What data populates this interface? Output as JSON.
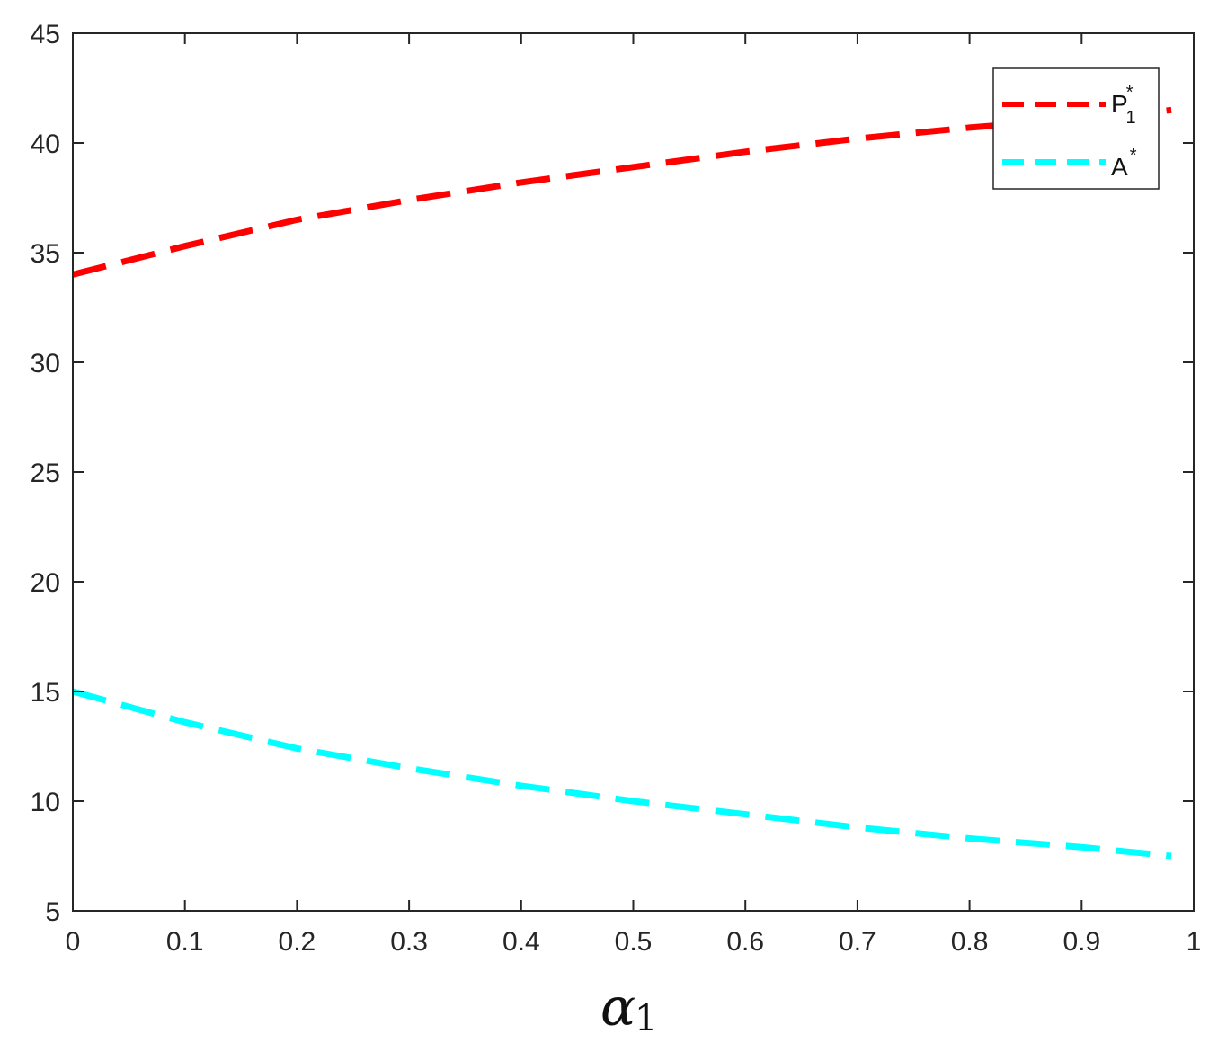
{
  "chart_data": {
    "type": "line",
    "title": "",
    "xlabel": {
      "symbol": "α",
      "subscript": "1"
    },
    "ylabel": "",
    "xlim": [
      0,
      1
    ],
    "ylim": [
      5,
      45
    ],
    "xticks": [
      "0",
      "0.1",
      "0.2",
      "0.3",
      "0.4",
      "0.5",
      "0.6",
      "0.7",
      "0.8",
      "0.9",
      "1"
    ],
    "yticks": [
      "5",
      "10",
      "15",
      "20",
      "25",
      "30",
      "35",
      "40",
      "45"
    ],
    "grid": false,
    "legend_position": "top-right",
    "series": [
      {
        "name": "P",
        "name_sup": "*",
        "name_sub": "1",
        "color": "#ff0000",
        "style": "dashed",
        "x": [
          0,
          0.1,
          0.2,
          0.3,
          0.4,
          0.5,
          0.6,
          0.7,
          0.8,
          0.9,
          0.98
        ],
        "y": [
          34.0,
          35.3,
          36.5,
          37.4,
          38.2,
          38.9,
          39.6,
          40.2,
          40.7,
          41.1,
          41.5
        ]
      },
      {
        "name": "A",
        "name_sup": "*",
        "color": "#00ffff",
        "style": "dashed",
        "x": [
          0,
          0.1,
          0.2,
          0.3,
          0.4,
          0.5,
          0.6,
          0.7,
          0.8,
          0.9,
          0.98
        ],
        "y": [
          15.0,
          13.6,
          12.4,
          11.5,
          10.7,
          10.0,
          9.4,
          8.8,
          8.3,
          7.9,
          7.5
        ]
      }
    ]
  }
}
